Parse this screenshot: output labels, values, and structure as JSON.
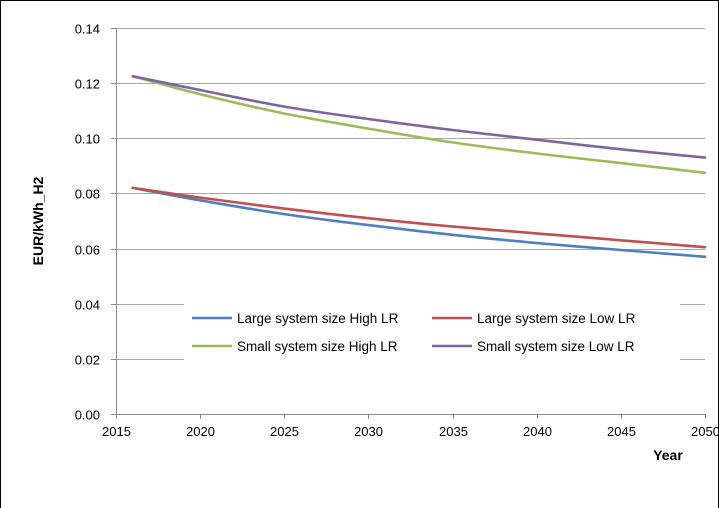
{
  "chart_data": {
    "type": "line",
    "title": "",
    "xlabel": "Year",
    "ylabel": "EUR/kWh_H2",
    "xlim": [
      2015,
      2050
    ],
    "ylim": [
      0,
      0.14
    ],
    "x_ticks": [
      2015,
      2020,
      2025,
      2030,
      2035,
      2040,
      2045,
      2050
    ],
    "y_ticks": [
      0.0,
      0.02,
      0.04,
      0.06,
      0.08,
      0.1,
      0.12,
      0.14
    ],
    "x_tick_labels": [
      "2015",
      "2020",
      "2025",
      "2030",
      "2035",
      "2040",
      "2045",
      "2050"
    ],
    "y_tick_labels": [
      "0.00",
      "0.02",
      "0.04",
      "0.06",
      "0.08",
      "0.10",
      "0.12",
      "0.14"
    ],
    "grid": "horizontal",
    "legend_position": "bottom-center inside plot",
    "x": [
      2016,
      2020,
      2025,
      2030,
      2035,
      2040,
      2045,
      2050
    ],
    "series": [
      {
        "name": "Large system size High LR",
        "color": "#4f7fbf",
        "values": [
          0.082,
          0.0775,
          0.0725,
          0.0685,
          0.065,
          0.062,
          0.0595,
          0.057
        ]
      },
      {
        "name": "Large system size Low LR",
        "color": "#c0504d",
        "values": [
          0.082,
          0.0785,
          0.0745,
          0.071,
          0.068,
          0.0655,
          0.063,
          0.0605
        ]
      },
      {
        "name": "Small system size High LR",
        "color": "#9bbb59",
        "values": [
          0.1225,
          0.116,
          0.109,
          0.1035,
          0.0985,
          0.0945,
          0.091,
          0.0875
        ]
      },
      {
        "name": "Small system size Low LR",
        "color": "#8064a2",
        "values": [
          0.1225,
          0.1175,
          0.1115,
          0.107,
          0.103,
          0.0995,
          0.096,
          0.093
        ]
      }
    ]
  }
}
